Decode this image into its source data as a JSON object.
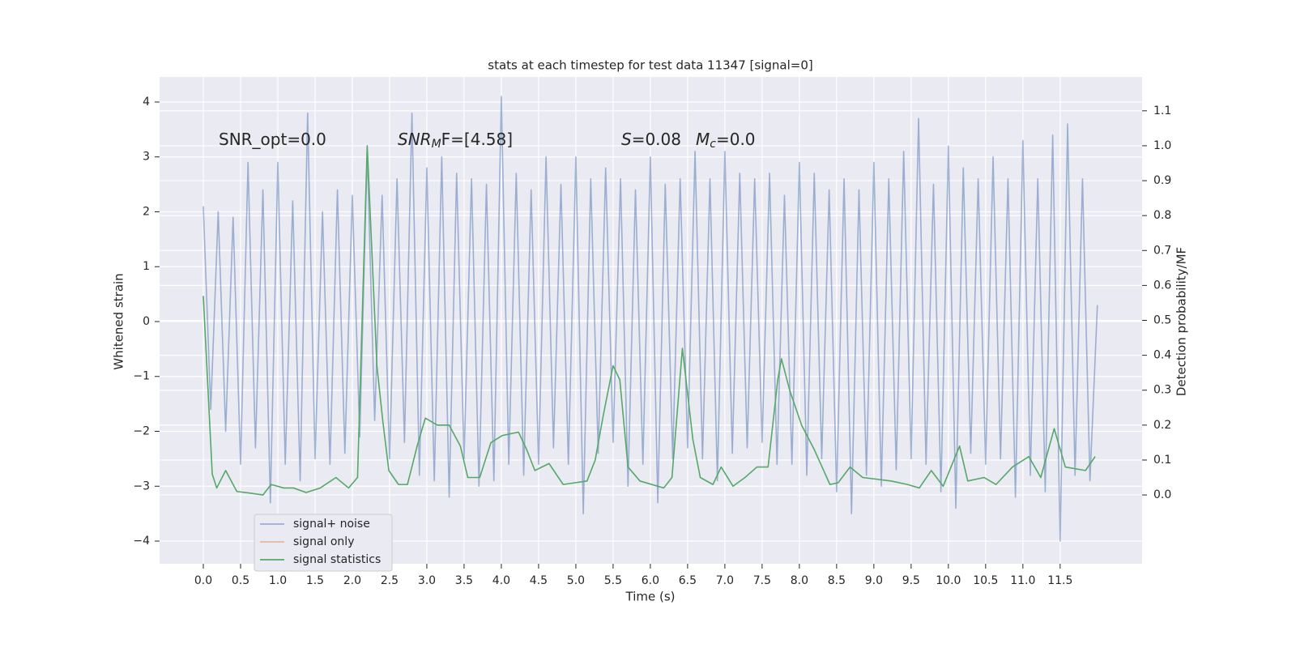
{
  "chart_data": {
    "type": "line",
    "title": "stats at each timestep for test data 11347 [signal=0]",
    "x_label": "Time (s)",
    "y_label": "Whitened strain",
    "y2_label": "Detection probability/MF",
    "xlim": [
      -0.587,
      12.6
    ],
    "ylim": [
      -4.413,
      4.457
    ],
    "y2lim": [
      -0.197,
      1.197
    ],
    "xticks": [
      {
        "value": 0,
        "label": "0.0"
      },
      0.5,
      {
        "value": 1,
        "label": "1.0"
      },
      1.5,
      {
        "value": 2,
        "label": "2.0"
      },
      2.5,
      {
        "value": 3,
        "label": "3.0"
      },
      3.5,
      {
        "value": 4,
        "label": "4.0"
      },
      4.5,
      {
        "value": 5,
        "label": "5.0"
      },
      5.5,
      {
        "value": 6,
        "label": "6.0"
      },
      6.5,
      {
        "value": 7,
        "label": "7.0"
      },
      7.5,
      {
        "value": 8,
        "label": "8.0"
      },
      8.5,
      {
        "value": 9,
        "label": "9.0"
      },
      9.5,
      {
        "value": 10,
        "label": "10.0"
      },
      10.5,
      {
        "value": 11,
        "label": "11.0"
      },
      11.5
    ],
    "yticks": [
      {
        "value": -4,
        "label": "−4"
      },
      {
        "value": -3,
        "label": "−3"
      },
      {
        "value": -2,
        "label": "−2"
      },
      {
        "value": -1,
        "label": "−1"
      },
      0,
      1,
      2,
      3,
      4
    ],
    "y2ticks": [
      {
        "value": 0,
        "label": "0.0"
      },
      0.1,
      0.2,
      0.3,
      0.4,
      0.5,
      0.6,
      0.7,
      0.8,
      0.9,
      {
        "value": 1,
        "label": "1.0"
      },
      1.1
    ],
    "grid": true,
    "background": "#eaeaf2",
    "legend_loc": "lower left",
    "annotations": [
      {
        "parts": [
          "SNR_opt=0.0"
        ]
      },
      {
        "parts": [
          "SNR",
          "M",
          "F=[4.58]"
        ]
      },
      {
        "parts": [
          "S",
          "=0.08"
        ]
      },
      {
        "parts": [
          "M",
          "c",
          "=0.0"
        ]
      }
    ],
    "series": [
      {
        "name": "signal+ noise",
        "color": "#4c72b0",
        "alpha": 0.5,
        "axis": "y",
        "x": [
          0,
          0.1,
          0.2,
          0.3,
          0.4,
          0.5,
          0.6,
          0.7,
          0.8,
          0.9,
          1,
          1.1,
          1.2,
          1.3,
          1.4,
          1.5,
          1.6,
          1.7,
          1.8,
          1.9,
          2,
          2.1,
          2.2,
          2.3,
          2.4,
          2.5,
          2.6,
          2.7,
          2.8,
          2.9,
          3,
          3.1,
          3.2,
          3.3,
          3.4,
          3.5,
          3.6,
          3.7,
          3.8,
          3.9,
          4,
          4.1,
          4.2,
          4.3,
          4.4,
          4.5,
          4.6,
          4.7,
          4.8,
          4.9,
          5,
          5.1,
          5.2,
          5.3,
          5.4,
          5.5,
          5.6,
          5.7,
          5.8,
          5.9,
          6,
          6.1,
          6.2,
          6.3,
          6.4,
          6.5,
          6.6,
          6.7,
          6.8,
          6.9,
          7,
          7.1,
          7.2,
          7.3,
          7.4,
          7.5,
          7.6,
          7.7,
          7.8,
          7.9,
          8,
          8.1,
          8.2,
          8.3,
          8.4,
          8.5,
          8.6,
          8.7,
          8.8,
          8.9,
          9,
          9.1,
          9.2,
          9.3,
          9.4,
          9.5,
          9.6,
          9.7,
          9.8,
          9.9,
          10,
          10.1,
          10.2,
          10.3,
          10.4,
          10.5,
          10.6,
          10.7,
          10.8,
          10.9,
          11,
          11.1,
          11.2,
          11.3,
          11.4,
          11.5,
          11.6,
          11.7,
          11.8,
          11.9,
          12
        ],
        "values": [
          2.1,
          -1.6,
          2.0,
          -2.0,
          1.9,
          -2.6,
          2.9,
          -2.3,
          2.4,
          -3.3,
          2.9,
          -2.6,
          2.2,
          -2.9,
          3.8,
          -2.5,
          2.0,
          -2.6,
          2.4,
          -2.4,
          2.3,
          -2.1,
          3.1,
          -1.8,
          2.3,
          -2.5,
          2.6,
          -2.2,
          3.8,
          -2.8,
          2.8,
          -2.9,
          3.0,
          -3.2,
          2.7,
          -2.5,
          2.6,
          -3.0,
          2.5,
          -2.9,
          4.1,
          -2.6,
          2.7,
          -2.8,
          2.4,
          -2.6,
          3.0,
          -2.3,
          2.5,
          -2.6,
          3.0,
          -3.5,
          2.6,
          -2.4,
          2.8,
          -2.2,
          2.6,
          -3.0,
          2.4,
          -2.6,
          3.0,
          -3.3,
          2.5,
          -2.5,
          2.6,
          -2.3,
          3.1,
          -2.5,
          2.6,
          -2.9,
          3.1,
          -2.4,
          2.7,
          -2.3,
          2.6,
          -2.2,
          2.7,
          -2.6,
          2.3,
          -2.6,
          2.9,
          -2.8,
          2.7,
          -2.5,
          2.4,
          -3.1,
          2.6,
          -3.5,
          2.4,
          -2.8,
          2.9,
          -3.0,
          2.6,
          -2.7,
          3.1,
          -2.5,
          3.7,
          -2.6,
          2.5,
          -3.1,
          3.2,
          -3.4,
          2.8,
          -2.4,
          2.6,
          -2.6,
          3.0,
          -2.5,
          2.6,
          -3.2,
          3.3,
          -2.8,
          2.6,
          -3.1,
          3.4,
          -4.0,
          3.6,
          -2.8,
          2.6,
          -2.9,
          0.3
        ]
      },
      {
        "name": "signal only",
        "color": "#dd8452",
        "alpha": 0.5,
        "axis": "y",
        "x": [],
        "values": []
      },
      {
        "name": "signal statistics",
        "color": "#55a868",
        "alpha": 1,
        "axis": "y2",
        "x": [
          0,
          0.12,
          0.18,
          0.3,
          0.45,
          0.64,
          0.8,
          0.91,
          1.08,
          1.21,
          1.38,
          1.57,
          1.78,
          1.95,
          2.07,
          2.2,
          2.33,
          2.41,
          2.49,
          2.62,
          2.74,
          2.87,
          2.98,
          3.14,
          3.3,
          3.45,
          3.55,
          3.71,
          3.86,
          4.01,
          4.23,
          4.34,
          4.45,
          4.64,
          4.83,
          4.99,
          5.15,
          5.26,
          5.37,
          5.5,
          5.59,
          5.7,
          5.86,
          6.18,
          6.29,
          6.43,
          6.57,
          6.67,
          6.84,
          6.95,
          7.11,
          7.27,
          7.43,
          7.58,
          7.71,
          7.76,
          7.87,
          8.03,
          8.2,
          8.41,
          8.52,
          8.68,
          8.85,
          9.23,
          9.45,
          9.61,
          9.77,
          9.93,
          10.15,
          10.26,
          10.48,
          10.64,
          10.86,
          11.08,
          11.24,
          11.42,
          11.57,
          11.84,
          11.97
        ],
        "values": [
          0.57,
          0.06,
          0.02,
          0.07,
          0.01,
          0.005,
          0.0,
          0.03,
          0.02,
          0.02,
          0.007,
          0.02,
          0.05,
          0.02,
          0.05,
          1.0,
          0.37,
          0.21,
          0.07,
          0.03,
          0.03,
          0.14,
          0.22,
          0.2,
          0.2,
          0.14,
          0.05,
          0.05,
          0.15,
          0.17,
          0.18,
          0.13,
          0.07,
          0.09,
          0.03,
          0.035,
          0.04,
          0.1,
          0.23,
          0.37,
          0.33,
          0.08,
          0.04,
          0.02,
          0.05,
          0.42,
          0.16,
          0.05,
          0.03,
          0.08,
          0.025,
          0.05,
          0.08,
          0.08,
          0.33,
          0.39,
          0.3,
          0.2,
          0.13,
          0.03,
          0.035,
          0.08,
          0.05,
          0.04,
          0.03,
          0.02,
          0.07,
          0.025,
          0.14,
          0.04,
          0.05,
          0.03,
          0.08,
          0.11,
          0.05,
          0.19,
          0.08,
          0.07,
          0.11
        ]
      }
    ]
  }
}
